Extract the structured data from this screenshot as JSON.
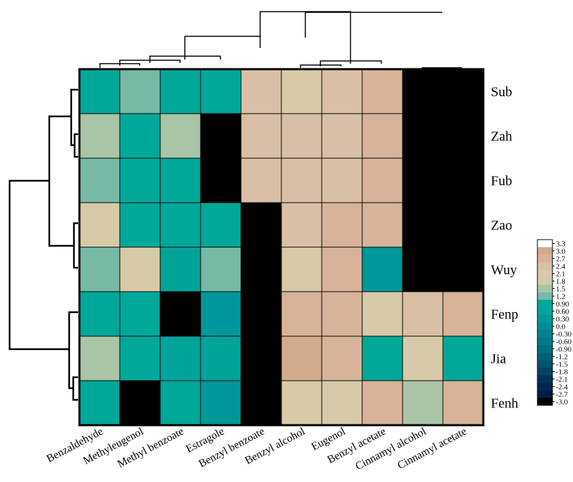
{
  "chart_data": {
    "type": "heatmap",
    "title": "",
    "xlabel": "",
    "ylabel": "",
    "x": [
      "Benzaldehyde",
      "Methyleugenol",
      "Methyl benzoate",
      "Estragole",
      "Benzyl benzoate",
      "Benzyl alcohol",
      "Eugenol",
      "Benzyl acetate",
      "Cinnamyl alcohol",
      "Cinnamyl acetate"
    ],
    "y": [
      "Sub",
      "Zah",
      "Fub",
      "Zao",
      "Wuy",
      "Fenp",
      "Jia",
      "Fenh"
    ],
    "values": [
      [
        0.9,
        1.2,
        0.9,
        0.9,
        2.4,
        2.1,
        2.4,
        2.7,
        -3.0,
        -3.0
      ],
      [
        1.5,
        0.9,
        1.5,
        -3.0,
        2.4,
        2.4,
        2.4,
        2.7,
        -3.0,
        -3.0
      ],
      [
        1.2,
        0.9,
        0.9,
        -3.0,
        2.4,
        2.4,
        2.4,
        2.7,
        -3.0,
        -3.0
      ],
      [
        2.1,
        0.9,
        0.9,
        0.9,
        -3.0,
        2.4,
        2.7,
        2.7,
        -3.0,
        -3.0
      ],
      [
        1.2,
        2.1,
        0.6,
        1.2,
        -3.0,
        2.1,
        2.7,
        0.3,
        -3.0,
        -3.0
      ],
      [
        0.9,
        0.9,
        -3.0,
        0.3,
        -3.0,
        2.7,
        2.7,
        2.1,
        2.4,
        2.7
      ],
      [
        1.5,
        0.9,
        0.6,
        0.6,
        -3.0,
        3.0,
        2.7,
        0.9,
        2.1,
        0.9
      ],
      [
        0.9,
        -3.0,
        0.9,
        0.3,
        -3.0,
        2.1,
        2.1,
        2.7,
        1.5,
        2.7
      ]
    ],
    "colorscale": {
      "ticks": [
        "3.3",
        "3.0",
        "2.7",
        "2.4",
        "2.1",
        "1.8",
        "1.5",
        "1.2",
        "0.90",
        "0.60",
        "0.30",
        "0.0",
        "-0.30",
        "-0.60",
        "-0.90",
        "-1.2",
        "-1.5",
        "-1.8",
        "-2.1",
        "-2.4",
        "-2.7",
        "-3.0"
      ],
      "colors": [
        "#ffffff",
        "#d2aa8c",
        "#d7b39a",
        "#d8bfa6",
        "#d7caa8",
        "#d0cba8",
        "#a9c4a6",
        "#77b9a7",
        "#00a89a",
        "#00a39a",
        "#00989a",
        "#008d96",
        "#008390",
        "#007888",
        "#006d80",
        "#006077",
        "#00536c",
        "#004461",
        "#003557",
        "#00274f",
        "#001f47",
        "#000000"
      ],
      "min": -3.0,
      "max": 3.3
    },
    "legend_position": "right",
    "dendrogram_columns": true,
    "dendrogram_rows": true
  }
}
